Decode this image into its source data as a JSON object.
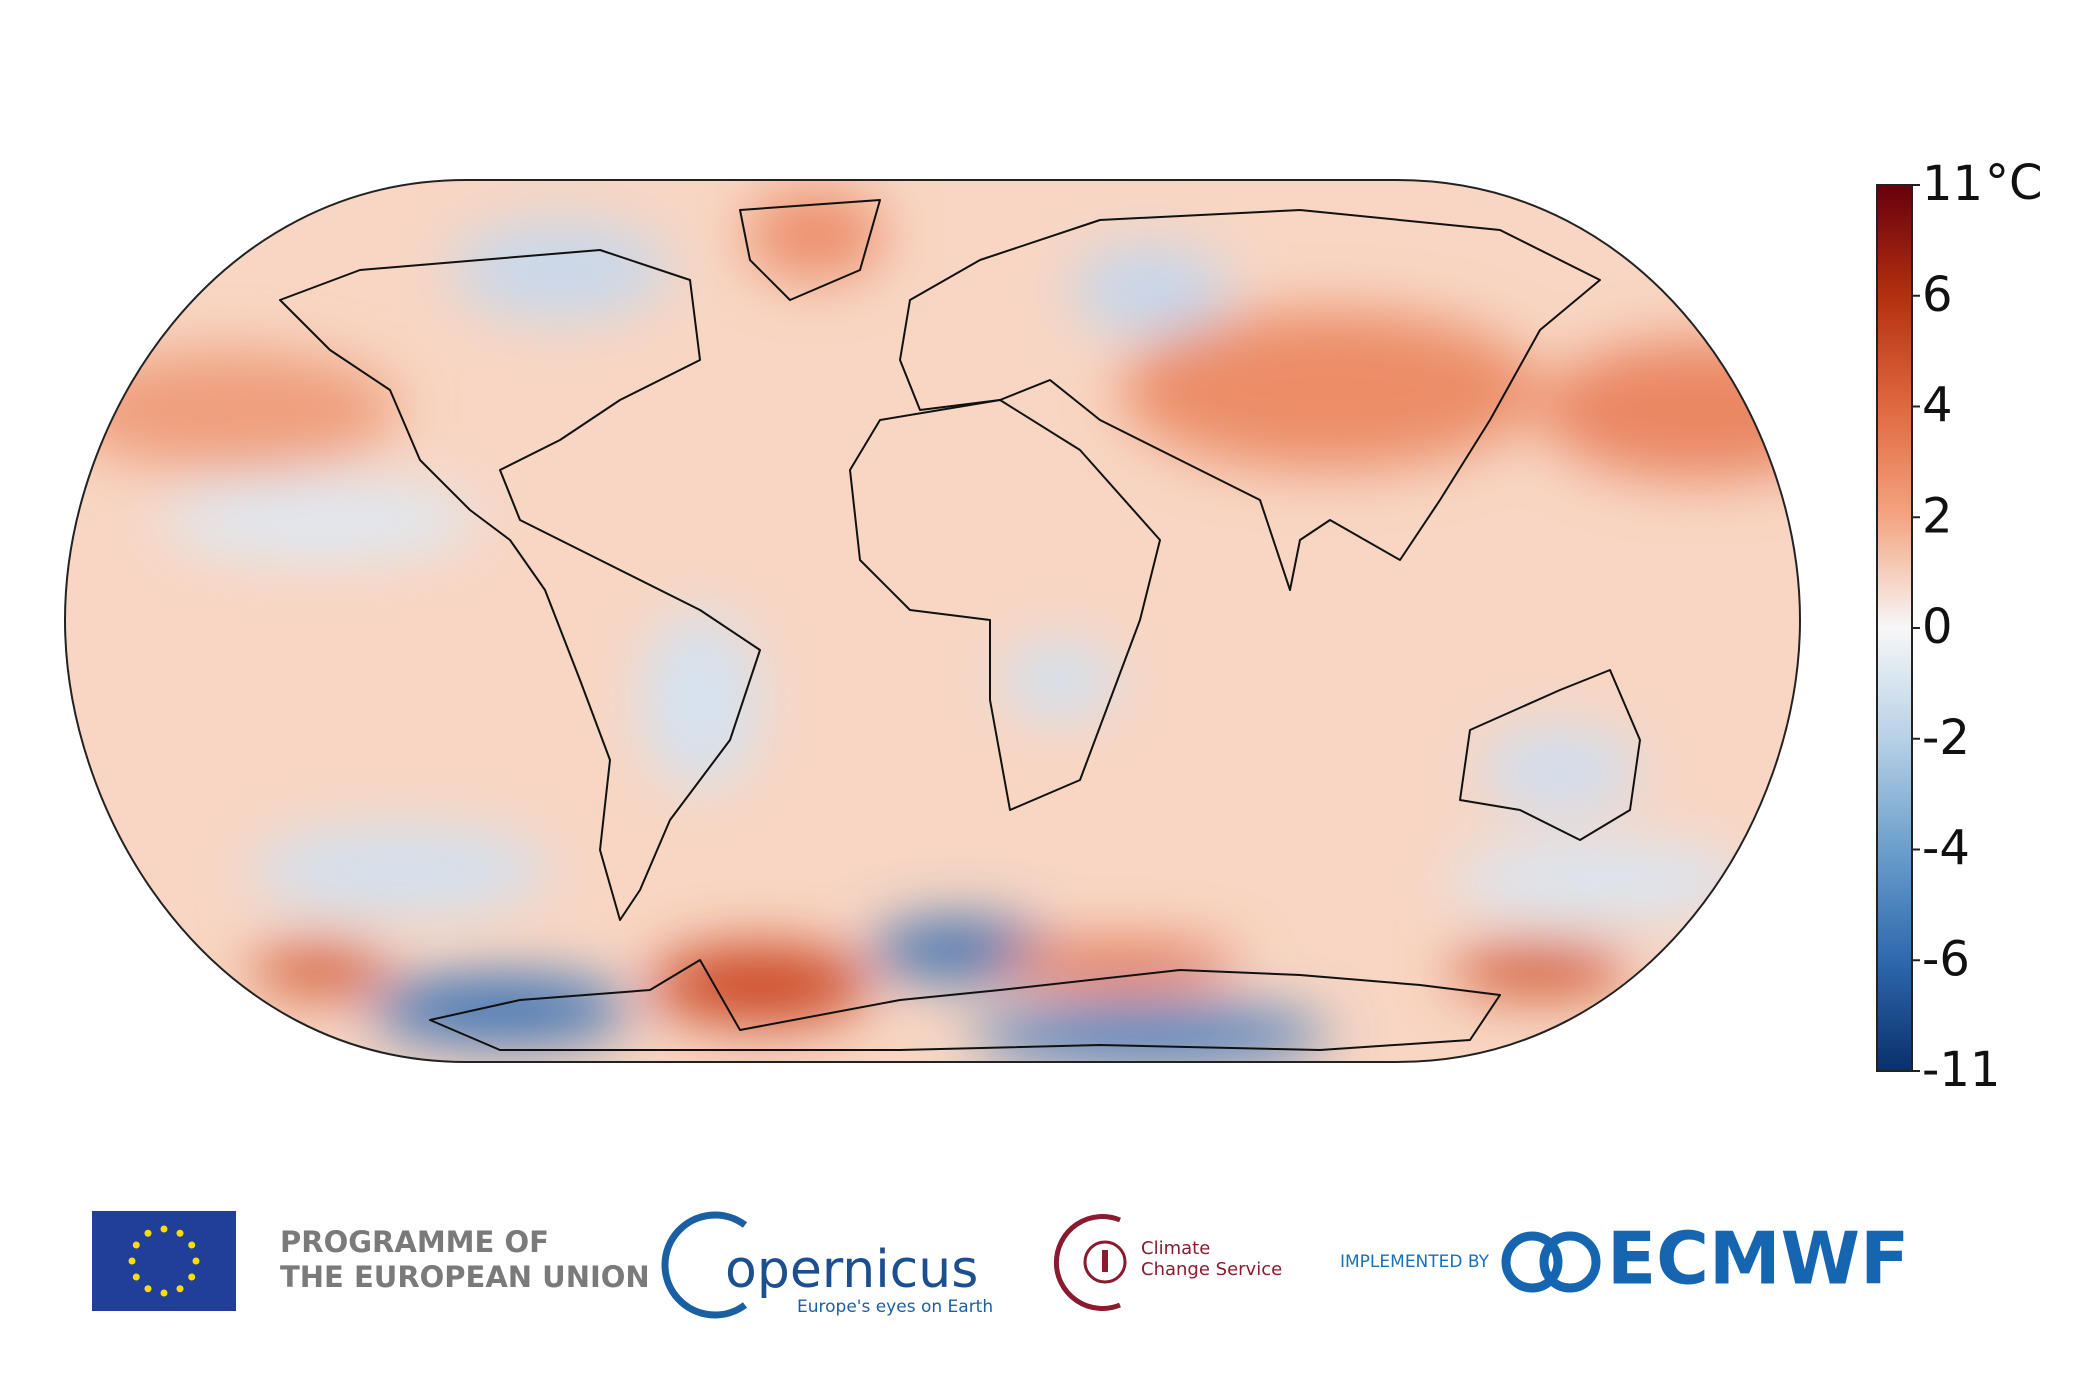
{
  "colorbar": {
    "unit": "°C",
    "ticks": [
      11,
      6,
      4,
      2,
      0,
      -2,
      -4,
      -6,
      -11
    ],
    "colors": [
      "#67000d",
      "#b3300f",
      "#e0683f",
      "#f4a582",
      "#f7f7f7",
      "#b7d1e6",
      "#6a9fcc",
      "#2f68ad",
      "#08306b"
    ]
  },
  "logos": {
    "eu_line1": "PROGRAMME OF",
    "eu_line2": "THE EUROPEAN UNION",
    "copernicus": "opernicus",
    "copernicus_tagline": "Europe's eyes on Earth",
    "c3s_line1": "Climate",
    "c3s_line2": "Change Service",
    "implemented_by": "IMPLEMENTED BY",
    "ecmwf": "ECMWF"
  }
}
